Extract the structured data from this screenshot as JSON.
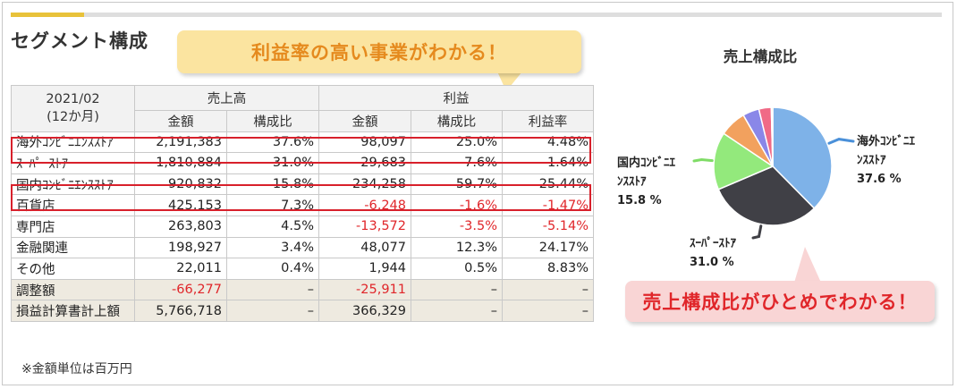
{
  "page": {
    "title": "セグメント構成",
    "callout_top": "利益率の高い事業がわかる！",
    "callout_bottom": "売上構成比がひとめでわかる！",
    "note": "※金額単位は百万円"
  },
  "table": {
    "corner_line1": "2021/02",
    "corner_line2": "(12か月)",
    "group_sales": "売上高",
    "group_profit": "利益",
    "sub_headers": [
      "金額",
      "構成比",
      "金額",
      "構成比",
      "利益率"
    ],
    "rows": [
      {
        "name": "海外ｺﾝﾋﾞﾆｴﾝｽｽﾄｱ",
        "sales": "2,191,383",
        "sales_ratio": "37.6%",
        "profit": "98,097",
        "profit_ratio": "25.0%",
        "margin": "4.48%",
        "highlight": true
      },
      {
        "name": "ｽｰﾊﾟｰｽﾄｱ",
        "sales": "1,810,884",
        "sales_ratio": "31.0%",
        "profit": "29,683",
        "profit_ratio": "7.6%",
        "margin": "1.64%"
      },
      {
        "name": "国内ｺﾝﾋﾞﾆｴﾝｽｽﾄｱ",
        "sales": "920,832",
        "sales_ratio": "15.8%",
        "profit": "234,258",
        "profit_ratio": "59.7%",
        "margin": "25.44%",
        "highlight": true
      },
      {
        "name": "百貨店",
        "sales": "425,153",
        "sales_ratio": "7.3%",
        "profit": "-6,248",
        "profit_ratio": "-1.6%",
        "margin": "-1.47%"
      },
      {
        "name": "専門店",
        "sales": "263,803",
        "sales_ratio": "4.5%",
        "profit": "-13,572",
        "profit_ratio": "-3.5%",
        "margin": "-5.14%"
      },
      {
        "name": "金融関連",
        "sales": "198,927",
        "sales_ratio": "3.4%",
        "profit": "48,077",
        "profit_ratio": "12.3%",
        "margin": "24.17%"
      },
      {
        "name": "その他",
        "sales": "22,011",
        "sales_ratio": "0.4%",
        "profit": "1,944",
        "profit_ratio": "0.5%",
        "margin": "8.83%"
      },
      {
        "name": "調整額",
        "sales": "-66,277",
        "sales_ratio": "–",
        "profit": "-25,911",
        "profit_ratio": "–",
        "margin": "–",
        "gray": true
      },
      {
        "name": "損益計算書計上額",
        "sales": "5,766,718",
        "sales_ratio": "–",
        "profit": "366,329",
        "profit_ratio": "–",
        "margin": "–",
        "gray": true
      }
    ]
  },
  "chart_data": {
    "type": "pie",
    "title": "売上構成比",
    "slices": [
      {
        "name": "海外ｺﾝﾋﾞﾆｴﾝｽｽﾄｱ",
        "value": 37.6,
        "color": "#7eb2e8",
        "label_line1": "海外ｺﾝﾋﾞﾆｴ",
        "label_line2": "ﾝｽｽﾄｱ",
        "label_line3": "37.6 %"
      },
      {
        "name": "ｽｰﾊﾟｰｽﾄｱ",
        "value": 31.0,
        "color": "#404046",
        "label_line1": "ｽｰﾊﾟｰｽﾄｱ",
        "label_line2": "31.0 %"
      },
      {
        "name": "国内ｺﾝﾋﾞﾆｴﾝｽｽﾄｱ",
        "value": 15.8,
        "color": "#93e97c",
        "label_line1": "国内ｺﾝﾋﾞﾆｴ",
        "label_line2": "ﾝｽｽﾄｱ",
        "label_line3": "15.8 %"
      },
      {
        "name": "百貨店",
        "value": 7.3,
        "color": "#f2a15e"
      },
      {
        "name": "専門店",
        "value": 4.5,
        "color": "#8a87e8"
      },
      {
        "name": "金融関連",
        "value": 3.4,
        "color": "#f06a86"
      },
      {
        "name": "その他",
        "value": 0.4,
        "color": "#e5e365"
      }
    ],
    "label_colors": {
      "overseas": "#4a90d9",
      "super": "#404046",
      "domestic": "#7fdc66"
    }
  }
}
